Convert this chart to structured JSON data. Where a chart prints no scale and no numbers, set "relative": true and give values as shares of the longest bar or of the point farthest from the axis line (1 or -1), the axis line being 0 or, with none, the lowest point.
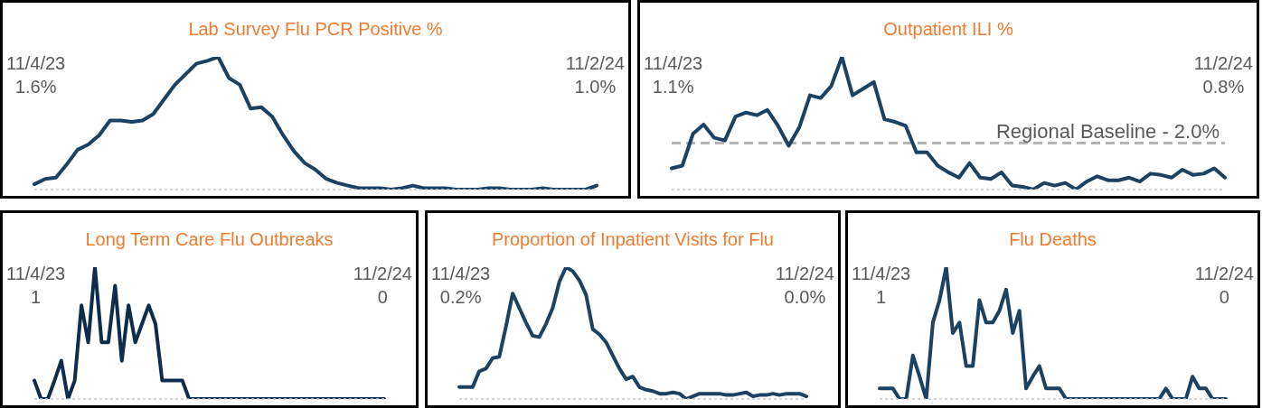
{
  "chart_data": [
    {
      "type": "line",
      "title": "Lab Survey Flu PCR Positive %",
      "relative": true,
      "annotations": [
        "11/4/23\n1.6%",
        "11/2/24\n1.0%"
      ],
      "categories": [
        null,
        null,
        null,
        null,
        null,
        null,
        null,
        null,
        null,
        null,
        null,
        null,
        null,
        null,
        null,
        null,
        null,
        null,
        null,
        null,
        null,
        null,
        null,
        null,
        null,
        null,
        null,
        null,
        null,
        null,
        null,
        null,
        null,
        null,
        null,
        null,
        null,
        null,
        null,
        null,
        null,
        null,
        null,
        null,
        null,
        null,
        null,
        null,
        null,
        null,
        null,
        null,
        null
      ],
      "series": [
        {
          "color": "#1b4263",
          "values": [
            0.04,
            0.08,
            0.09,
            0.19,
            0.3,
            0.34,
            0.41,
            0.52,
            0.52,
            0.51,
            0.52,
            0.57,
            0.68,
            0.79,
            0.87,
            0.95,
            0.97,
            1,
            0.84,
            0.79,
            0.61,
            0.62,
            0.55,
            0.41,
            0.29,
            0.2,
            0.15,
            0.08,
            0.05,
            0.03,
            0.01,
            0.01,
            0.01,
            0,
            0.01,
            0.03,
            0.01,
            0.01,
            0.01,
            0,
            0,
            0,
            0.01,
            0.01,
            0,
            0,
            0,
            0.01,
            0,
            0,
            0,
            0,
            0.03
          ]
        }
      ]
    },
    {
      "type": "line",
      "title": "Outpatient ILI %",
      "relative": true,
      "annotations": [
        "11/4/23\n1.1%",
        "11/2/24\n0.8%"
      ],
      "ref_lines": [
        {
          "axis": "y",
          "value": 0.35,
          "label": "Regional Baseline - 2.0%",
          "color": "#b4b4b4",
          "line_style": "dashed"
        }
      ],
      "categories": [
        null,
        null,
        null,
        null,
        null,
        null,
        null,
        null,
        null,
        null,
        null,
        null,
        null,
        null,
        null,
        null,
        null,
        null,
        null,
        null,
        null,
        null,
        null,
        null,
        null,
        null,
        null,
        null,
        null,
        null,
        null,
        null,
        null,
        null,
        null,
        null,
        null,
        null,
        null,
        null,
        null,
        null,
        null,
        null,
        null,
        null,
        null,
        null,
        null,
        null,
        null,
        null,
        null
      ],
      "series": [
        {
          "color": "#1b4263",
          "values": [
            0.16,
            0.18,
            0.42,
            0.49,
            0.39,
            0.37,
            0.55,
            0.58,
            0.56,
            0.6,
            0.48,
            0.33,
            0.47,
            0.71,
            0.69,
            0.78,
            1,
            0.71,
            0.76,
            0.81,
            0.53,
            0.51,
            0.48,
            0.28,
            0.28,
            0.18,
            0.13,
            0.09,
            0.2,
            0.09,
            0.08,
            0.13,
            0.03,
            0.02,
            0,
            0.05,
            0.03,
            0.05,
            0,
            0.06,
            0.1,
            0.07,
            0.07,
            0.09,
            0.06,
            0.12,
            0.11,
            0.09,
            0.15,
            0.11,
            0.12,
            0.16,
            0.09
          ]
        }
      ]
    },
    {
      "type": "line",
      "title": "Long Term Care Flu Outbreaks",
      "relative": true,
      "annotations": [
        "11/4/23\n1",
        "11/2/24\n0"
      ],
      "categories": [
        null,
        null,
        null,
        null,
        null,
        null,
        null,
        null,
        null,
        null,
        null,
        null,
        null,
        null,
        null,
        null,
        null,
        null,
        null,
        null,
        null,
        null,
        null,
        null,
        null,
        null,
        null,
        null,
        null,
        null,
        null,
        null,
        null,
        null,
        null,
        null,
        null,
        null,
        null,
        null,
        null,
        null,
        null,
        null,
        null,
        null,
        null,
        null,
        null,
        null,
        null,
        null,
        null
      ],
      "series": [
        {
          "color": "#0e2d4c",
          "values": [
            0.14,
            0,
            0,
            0.14,
            0.29,
            0,
            0.14,
            0.71,
            0.43,
            1,
            0.43,
            0.43,
            0.86,
            0.29,
            0.71,
            0.43,
            0.57,
            0.71,
            0.57,
            0.14,
            0.14,
            0.14,
            0.14,
            0,
            0,
            0,
            0,
            0,
            0,
            0,
            0,
            0,
            0,
            0,
            0,
            0,
            0,
            0,
            0,
            0,
            0,
            0,
            0,
            0,
            0,
            0,
            0,
            0,
            0,
            0,
            0,
            0,
            0
          ]
        }
      ]
    },
    {
      "type": "line",
      "title": "Proportion of Inpatient Visits for Flu",
      "relative": true,
      "annotations": [
        "11/4/23\n0.2%",
        "11/2/24\n0.0%"
      ],
      "categories": [
        null,
        null,
        null,
        null,
        null,
        null,
        null,
        null,
        null,
        null,
        null,
        null,
        null,
        null,
        null,
        null,
        null,
        null,
        null,
        null,
        null,
        null,
        null,
        null,
        null,
        null,
        null,
        null,
        null,
        null,
        null,
        null,
        null,
        null,
        null,
        null,
        null,
        null,
        null,
        null,
        null,
        null,
        null,
        null,
        null,
        null,
        null,
        null,
        null,
        null,
        null,
        null,
        null
      ],
      "series": [
        {
          "color": "#1b4263",
          "values": [
            0.09,
            0.09,
            0.09,
            0.21,
            0.23,
            0.31,
            0.32,
            0.55,
            0.8,
            0.69,
            0.58,
            0.48,
            0.47,
            0.57,
            0.69,
            0.89,
            1,
            0.97,
            0.9,
            0.79,
            0.53,
            0.49,
            0.43,
            0.33,
            0.23,
            0.15,
            0.17,
            0.09,
            0.07,
            0.06,
            0.04,
            0.04,
            0.05,
            0.04,
            0,
            0.02,
            0.04,
            0.04,
            0.04,
            0.04,
            0.03,
            0.03,
            0.04,
            0.05,
            0.02,
            0.03,
            0.03,
            0.04,
            0.03,
            0.04,
            0.04,
            0.04,
            0.02
          ]
        }
      ]
    },
    {
      "type": "line",
      "title": "Flu Deaths",
      "relative": true,
      "annotations": [
        "11/4/23\n1",
        "11/2/24\n0"
      ],
      "categories": [
        null,
        null,
        null,
        null,
        null,
        null,
        null,
        null,
        null,
        null,
        null,
        null,
        null,
        null,
        null,
        null,
        null,
        null,
        null,
        null,
        null,
        null,
        null,
        null,
        null,
        null,
        null,
        null,
        null,
        null,
        null,
        null,
        null,
        null,
        null,
        null,
        null,
        null,
        null,
        null,
        null,
        null,
        null,
        null,
        null,
        null,
        null,
        null,
        null,
        null,
        null,
        null,
        null
      ],
      "series": [
        {
          "color": "#1b4263",
          "values": [
            0.08,
            0.08,
            0.08,
            0,
            0,
            0.33,
            0.17,
            0,
            0.58,
            0.75,
            1,
            0.5,
            0.58,
            0.25,
            0.25,
            0.75,
            0.58,
            0.58,
            0.67,
            0.83,
            0.5,
            0.67,
            0.08,
            0.17,
            0.25,
            0.08,
            0.08,
            0.08,
            0,
            0,
            0,
            0,
            0,
            0,
            0,
            0,
            0,
            0,
            0,
            0,
            0,
            0,
            0,
            0.08,
            0,
            0,
            0,
            0.17,
            0.08,
            0.08,
            0,
            0,
            0
          ]
        }
      ]
    }
  ]
}
